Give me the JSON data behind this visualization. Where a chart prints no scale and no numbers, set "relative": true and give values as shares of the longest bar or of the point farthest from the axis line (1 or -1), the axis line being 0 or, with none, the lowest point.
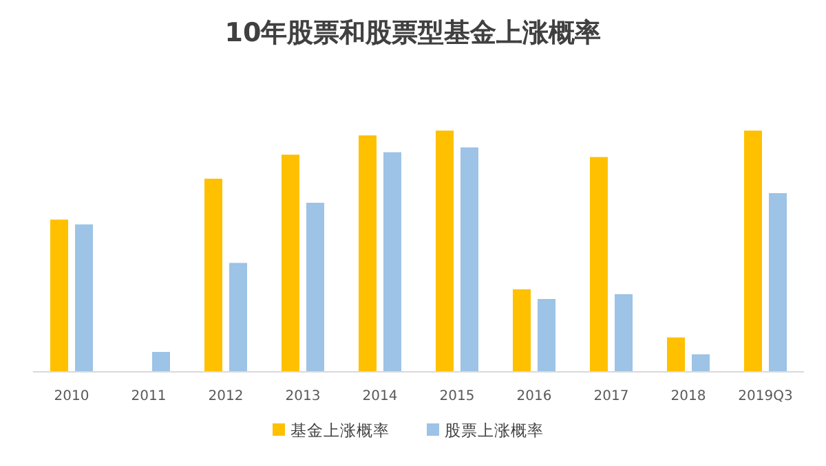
{
  "chart_data": {
    "type": "bar",
    "title": "10年股票和股票型基金上涨概率",
    "relative": true,
    "legend": "bottom",
    "categories": [
      "2010",
      "2011",
      "2012",
      "2013",
      "2014",
      "2015",
      "2016",
      "2017",
      "2018",
      "2019Q3"
    ],
    "series": [
      {
        "name": "基金上涨概率",
        "color": "#ffc000",
        "values": [
          0.63,
          0,
          0.8,
          0.9,
          0.98,
          1,
          0.34,
          0.89,
          0.14,
          1
        ]
      },
      {
        "name": "股票上涨概率",
        "color": "#9dc3e6",
        "values": [
          0.61,
          0.08,
          0.45,
          0.7,
          0.91,
          0.93,
          0.3,
          0.32,
          0.07,
          0.74
        ]
      }
    ]
  }
}
